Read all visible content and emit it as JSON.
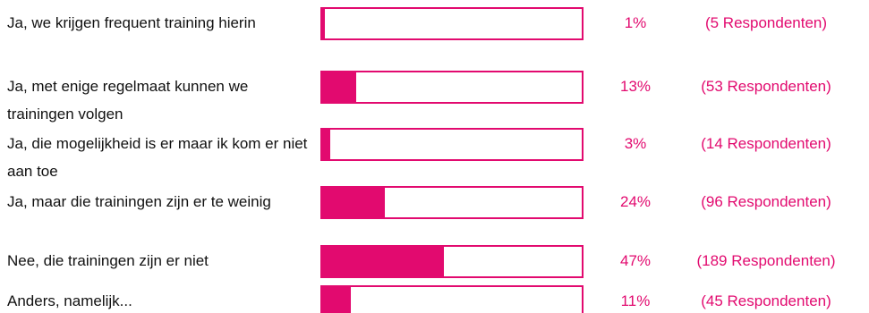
{
  "chart_data": {
    "type": "bar",
    "categories": [
      "Ja, we krijgen frequent training hierin",
      "Ja, met enige regelmaat kunnen we trainingen volgen",
      "Ja, die mogelijkheid is er maar ik kom er niet aan toe",
      "Ja, maar die trainingen zijn er te weinig",
      "Nee, die trainingen zijn er niet",
      "Anders, namelijk..."
    ],
    "values": [
      1,
      13,
      3,
      24,
      47,
      11
    ],
    "value_labels": [
      "1%",
      "13%",
      "3%",
      "24%",
      "47%",
      "11%"
    ],
    "respondent_labels": [
      "(5 Respondenten)",
      "(53 Respondenten)",
      "(14 Respondenten)",
      "(96 Respondenten)",
      "(189 Respondenten)",
      "(45 Respondenten)"
    ],
    "color": "#e20a6f",
    "xlim": [
      0,
      100
    ]
  }
}
